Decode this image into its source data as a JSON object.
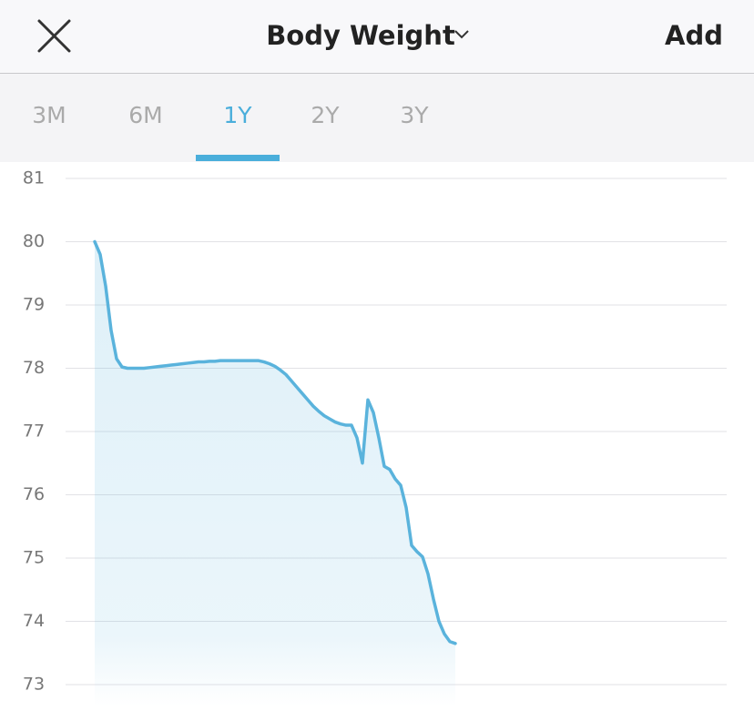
{
  "header": {
    "title": "Body Weight",
    "action": "Add"
  },
  "tabs": {
    "items": [
      "3M",
      "6M",
      "1Y",
      "2Y",
      "3Y"
    ],
    "active": 2
  },
  "chart_data": {
    "type": "area",
    "color": "#5ab3dc",
    "values": [
      80.0,
      79.8,
      79.3,
      78.6,
      78.15,
      78.02,
      78.0,
      78.0,
      78.0,
      78.0,
      78.01,
      78.02,
      78.03,
      78.04,
      78.05,
      78.06,
      78.07,
      78.08,
      78.09,
      78.1,
      78.1,
      78.11,
      78.11,
      78.12,
      78.12,
      78.12,
      78.12,
      78.12,
      78.12,
      78.12,
      78.12,
      78.1,
      78.07,
      78.03,
      77.97,
      77.9,
      77.8,
      77.7,
      77.6,
      77.5,
      77.4,
      77.32,
      77.25,
      77.2,
      77.15,
      77.12,
      77.1,
      77.1,
      76.9,
      76.5,
      77.5,
      77.3,
      76.9,
      76.45,
      76.4,
      76.25,
      76.15,
      75.8,
      75.2,
      75.1,
      75.02,
      74.75,
      74.35,
      74.0,
      73.8,
      73.68,
      73.65
    ],
    "ylim": [
      73,
      81
    ],
    "yticks": [
      73,
      74,
      75,
      76,
      77,
      78,
      79,
      80,
      81
    ],
    "grid": true
  }
}
